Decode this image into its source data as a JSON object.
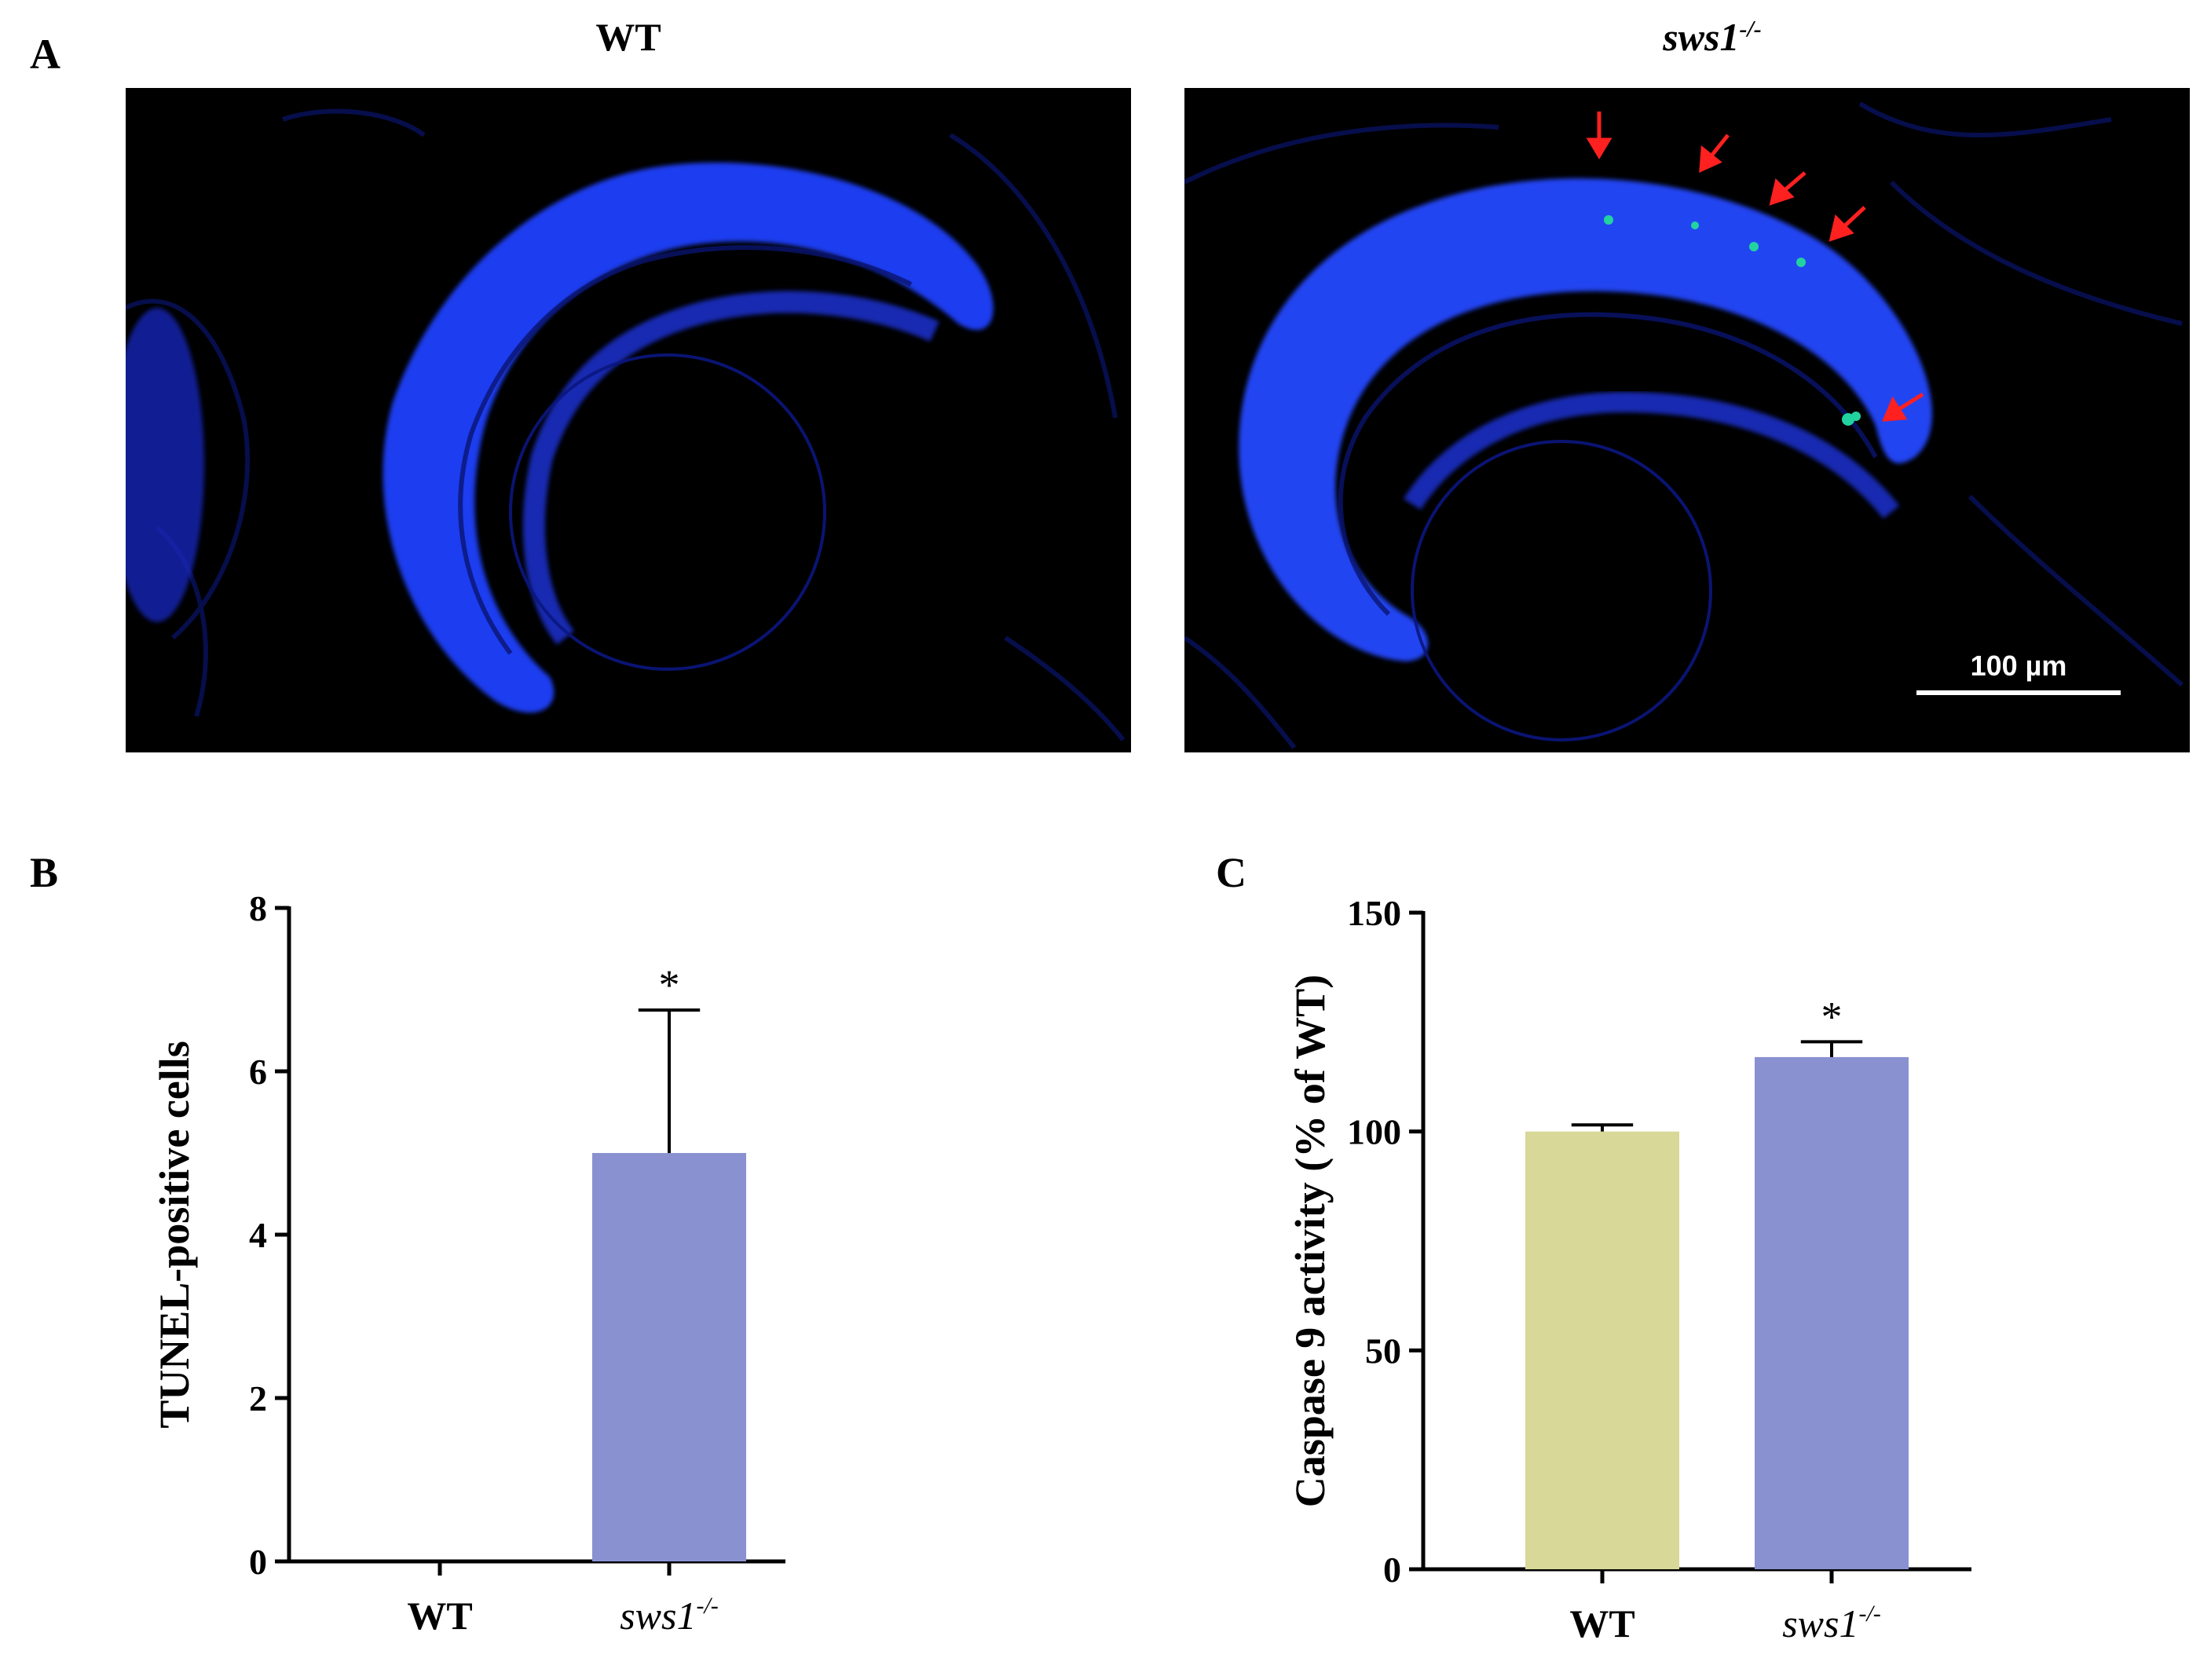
{
  "panel_a": {
    "letter": "A",
    "wt_title": "WT",
    "mutant_title_base": "sws1",
    "mutant_title_sup": "-/-",
    "scale_bar_label": "100 µm",
    "dapi_color": "#1a2fe6",
    "tunel_color": "#22d3a0",
    "arrow_color": "#ff2020",
    "arrow_count": 5
  },
  "chart_data": [
    {
      "panel": "B",
      "type": "bar",
      "title": "",
      "xlabel": "",
      "ylabel": "TUNEL-positive cells",
      "categories": [
        "WT",
        "sws1-/-"
      ],
      "category_display": [
        {
          "base": "WT",
          "sup": "",
          "italic": false
        },
        {
          "base": "sws1",
          "sup": "-/-",
          "italic": true
        }
      ],
      "values": [
        0,
        5
      ],
      "errors": [
        0,
        1.75
      ],
      "significance": [
        "",
        "*"
      ],
      "bar_colors": [
        "#d8d898",
        "#8a91d0"
      ],
      "ylim": [
        0,
        8
      ],
      "yticks": [
        0,
        2,
        4,
        6,
        8
      ]
    },
    {
      "panel": "C",
      "type": "bar",
      "title": "",
      "xlabel": "",
      "ylabel": "Caspase 9 activity (% of WT)",
      "categories": [
        "WT",
        "sws1-/-"
      ],
      "category_display": [
        {
          "base": "WT",
          "sup": "",
          "italic": false
        },
        {
          "base": "sws1",
          "sup": "-/-",
          "italic": true
        }
      ],
      "values": [
        100,
        117
      ],
      "errors": [
        1.5,
        3.5
      ],
      "significance": [
        "",
        "*"
      ],
      "bar_colors": [
        "#d8d898",
        "#8a91d0"
      ],
      "ylim": [
        0,
        150
      ],
      "yticks": [
        0,
        50,
        100,
        150
      ]
    }
  ]
}
